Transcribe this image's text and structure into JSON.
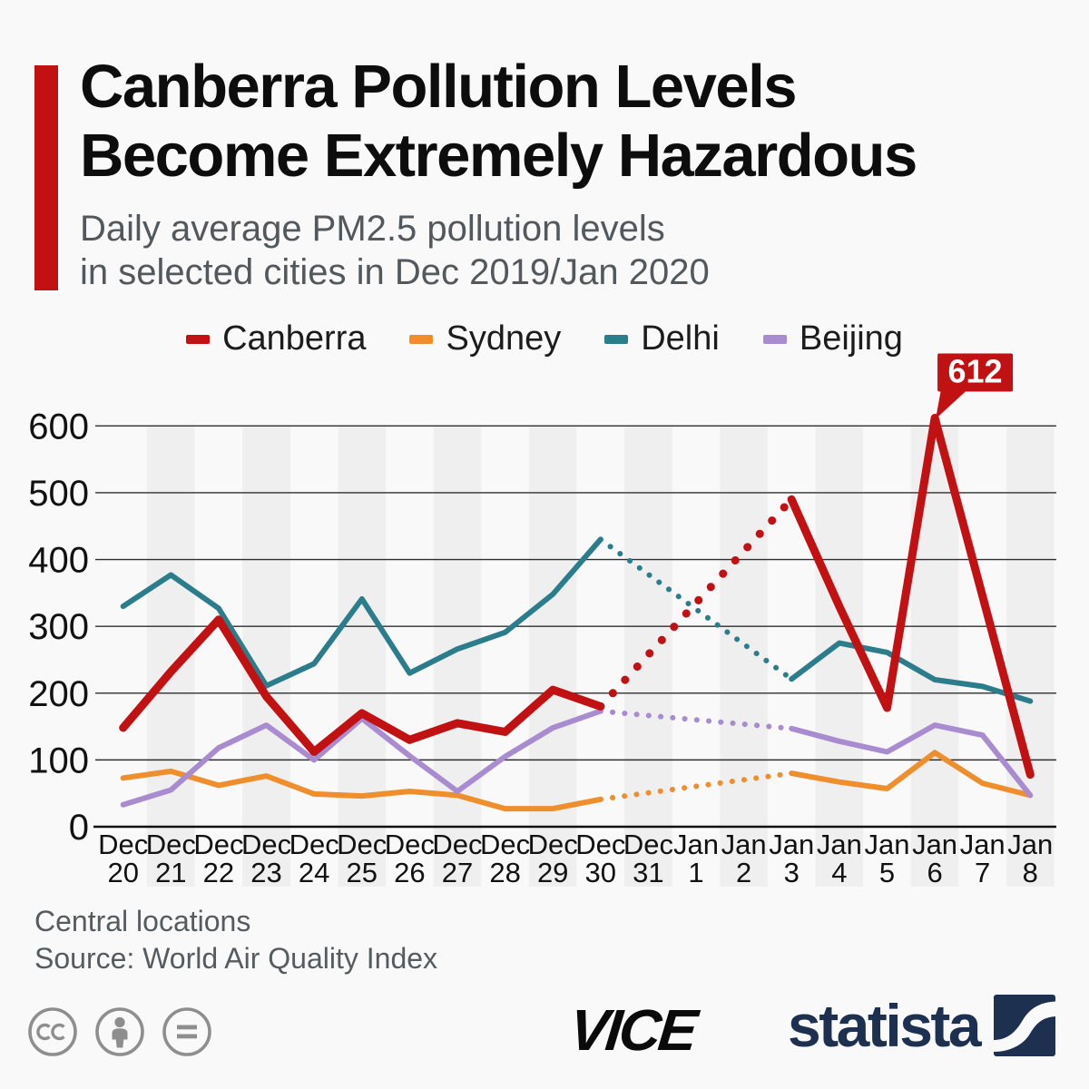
{
  "header": {
    "title_line1": "Canberra Pollution Levels",
    "title_line2": "Become Extremely Hazardous",
    "subtitle_line1": "Daily average PM2.5 pollution levels",
    "subtitle_line2": "in selected cities in Dec 2019/Jan 2020"
  },
  "chart_data": {
    "type": "line",
    "categories": [
      "Dec 20",
      "Dec 21",
      "Dec 22",
      "Dec 23",
      "Dec 24",
      "Dec 25",
      "Dec 26",
      "Dec 27",
      "Dec 28",
      "Dec 29",
      "Dec 30",
      "Dec 31",
      "Jan 1",
      "Jan 2",
      "Jan 3",
      "Jan 4",
      "Jan 5",
      "Jan 6",
      "Jan 7",
      "Jan 8"
    ],
    "y_ticks": [
      0,
      100,
      200,
      300,
      400,
      500,
      600
    ],
    "ylim": [
      0,
      600
    ],
    "grid": true,
    "legend_position": "top",
    "series": [
      {
        "name": "Canberra",
        "color": "#c11113",
        "width": 9,
        "values": [
          148,
          232,
          310,
          195,
          112,
          170,
          130,
          155,
          142,
          205,
          180,
          null,
          null,
          null,
          490,
          330,
          178,
          612,
          345,
          78
        ]
      },
      {
        "name": "Sydney",
        "color": "#ef8e2d",
        "width": 6,
        "values": [
          73,
          83,
          62,
          76,
          49,
          46,
          53,
          47,
          27,
          27,
          41,
          null,
          null,
          null,
          80,
          67,
          57,
          111,
          65,
          47
        ]
      },
      {
        "name": "Delhi",
        "color": "#2c7d8c",
        "width": 6,
        "values": [
          330,
          377,
          327,
          211,
          244,
          341,
          230,
          266,
          291,
          348,
          430,
          null,
          null,
          null,
          221,
          275,
          261,
          220,
          210,
          188
        ]
      },
      {
        "name": "Beijing",
        "color": "#a88ccf",
        "width": 6,
        "values": [
          33,
          55,
          118,
          152,
          100,
          162,
          106,
          53,
          105,
          148,
          173,
          null,
          null,
          null,
          147,
          128,
          112,
          152,
          137,
          47
        ]
      }
    ],
    "missing_data_note": "Dec 31 - Jan 2 shown as dotted interpolation",
    "annotation": {
      "label": "612",
      "series": "Canberra",
      "category": "Jan 6",
      "value": 612
    },
    "band_color": "#efefef",
    "grid_color": "#2e2e2e",
    "axis_color": "#111111"
  },
  "footer": {
    "note": "Central locations",
    "source": "Source: World Air Quality Index"
  },
  "logos": {
    "vice": "VICE",
    "statista": "statista"
  },
  "accent_color": "#c11113",
  "icons": [
    "cc-icon",
    "cc-attribution-icon",
    "cc-no-derivatives-icon",
    "statista-mark-icon"
  ]
}
